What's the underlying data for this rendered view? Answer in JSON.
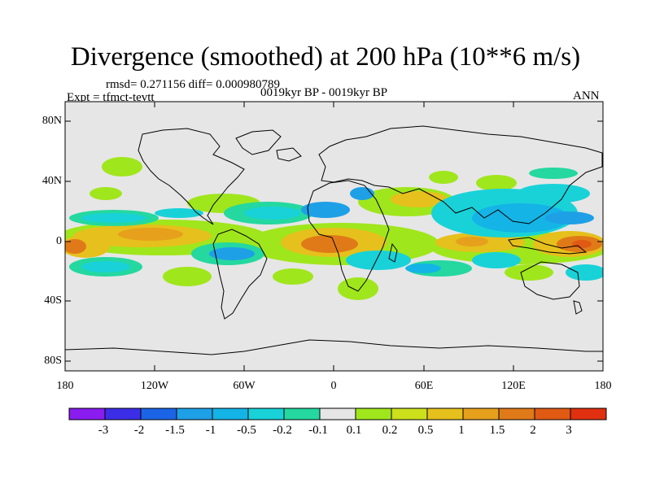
{
  "title": "Divergence (smoothed) at 200 hPa (10**6 m/s)",
  "stats": "rmsd= 0.271156  diff= 0.000980789",
  "expt": "Expt = tfmct-tevtt",
  "period": "0019kyr BP - 0019kyr BP",
  "season": "ANN",
  "y_ticks": [
    "80N",
    "40N",
    "0",
    "40S",
    "80S"
  ],
  "x_ticks": [
    "180",
    "120W",
    "60W",
    "0",
    "60E",
    "120E",
    "180"
  ],
  "colorbar": {
    "labels": [
      "-3",
      "-2",
      "-1.5",
      "-1",
      "-0.5",
      "-0.2",
      "-0.1",
      "0.1",
      "0.2",
      "0.5",
      "1",
      "1.5",
      "2",
      "3"
    ],
    "colors": [
      "#8a1cf0",
      "#3c2ee6",
      "#1c64e6",
      "#1ea0e6",
      "#14b4e6",
      "#18d2d8",
      "#24d8a0",
      "#e6e6e6",
      "#a0e61c",
      "#cce01c",
      "#e6c01c",
      "#e6a01c",
      "#e07a18",
      "#e05a14",
      "#e03010"
    ]
  },
  "map": {
    "background": "#e6e6e6",
    "lon_range": [
      -180,
      180
    ],
    "lat_range": [
      -90,
      90
    ]
  }
}
